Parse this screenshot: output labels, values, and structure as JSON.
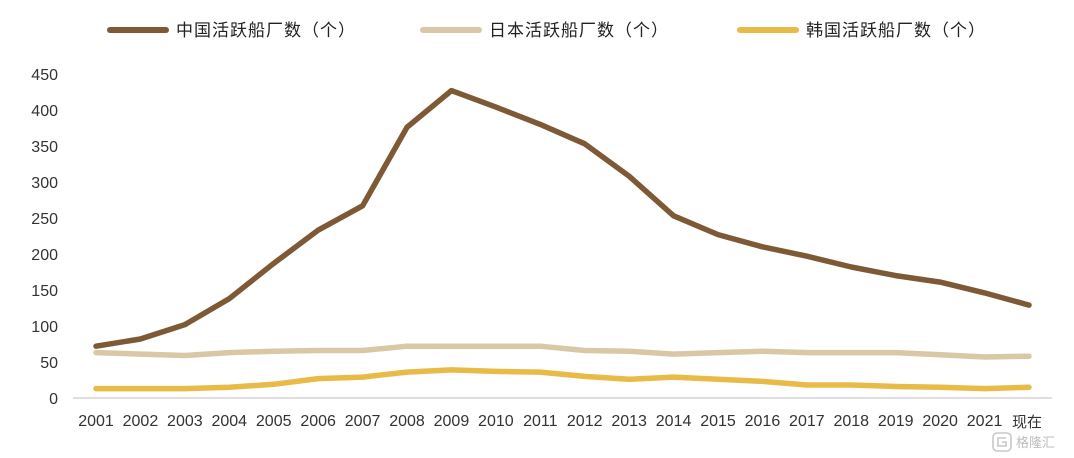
{
  "chart_data": {
    "type": "line",
    "title": "",
    "xlabel": "",
    "ylabel": "",
    "categories": [
      "2001",
      "2002",
      "2003",
      "2004",
      "2005",
      "2006",
      "2007",
      "2008",
      "2009",
      "2010",
      "2011",
      "2012",
      "2013",
      "2014",
      "2015",
      "2016",
      "2017",
      "2018",
      "2019",
      "2020",
      "2021",
      "现在"
    ],
    "ylim": [
      0,
      450
    ],
    "yticks": [
      0,
      50,
      100,
      150,
      200,
      250,
      300,
      350,
      400,
      450
    ],
    "grid": false,
    "legend_position": "top",
    "series": [
      {
        "name": "中国活跃船厂数（个）",
        "color": "#7d5a35",
        "values": [
          72,
          82,
          102,
          138,
          187,
          233,
          267,
          376,
          427,
          404,
          380,
          353,
          308,
          253,
          227,
          210,
          197,
          182,
          170,
          161,
          146,
          129
        ]
      },
      {
        "name": "日本活跃船厂数（个）",
        "color": "#d8c8a6",
        "values": [
          63,
          61,
          59,
          63,
          65,
          66,
          66,
          72,
          72,
          72,
          72,
          66,
          65,
          61,
          63,
          65,
          63,
          63,
          63,
          60,
          57,
          58
        ]
      },
      {
        "name": "韩国活跃船厂数（个）",
        "color": "#e8bb48",
        "values": [
          13,
          13,
          13,
          15,
          19,
          27,
          29,
          36,
          39,
          37,
          36,
          30,
          26,
          29,
          26,
          23,
          18,
          18,
          16,
          15,
          13,
          15
        ]
      }
    ]
  },
  "watermark": {
    "icon": "gelonghui-logo-icon",
    "text": "格隆汇"
  }
}
